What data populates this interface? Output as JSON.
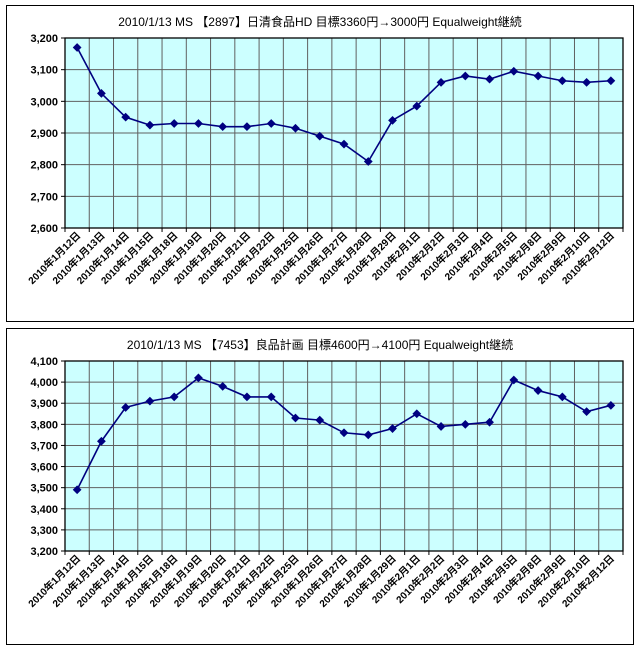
{
  "chart_data": [
    {
      "type": "line",
      "title": "2010/1/13 MS 【2897】日清食品HD 目標3360円→3000円 Equalweight継続",
      "categories": [
        "2010年1月12日",
        "2010年1月13日",
        "2010年1月14日",
        "2010年1月15日",
        "2010年1月18日",
        "2010年1月19日",
        "2010年1月20日",
        "2010年1月21日",
        "2010年1月22日",
        "2010年1月25日",
        "2010年1月26日",
        "2010年1月27日",
        "2010年1月28日",
        "2010年1月29日",
        "2010年2月1日",
        "2010年2月2日",
        "2010年2月3日",
        "2010年2月4日",
        "2010年2月5日",
        "2010年2月8日",
        "2010年2月9日",
        "2010年2月10日",
        "2010年2月12日"
      ],
      "values": [
        3170,
        3025,
        2950,
        2925,
        2930,
        2930,
        2920,
        2920,
        2930,
        2915,
        2890,
        2865,
        2810,
        2940,
        2985,
        3060,
        3080,
        3070,
        3095,
        3080,
        3065,
        3060,
        3065
      ],
      "xlabel": "",
      "ylabel": "",
      "ylim": [
        2600,
        3200
      ],
      "ytick_step": 100,
      "yticks": [
        "2,600",
        "2,700",
        "2,800",
        "2,900",
        "3,000",
        "3,100",
        "3,200"
      ],
      "grid": true,
      "legend": "none",
      "marker": "diamond",
      "colors": {
        "plot_bg": "#ccffff",
        "line": "#000080",
        "grid": "#606060",
        "axis": "#000000"
      }
    },
    {
      "type": "line",
      "title": "2010/1/13 MS 【7453】良品計画 目標4600円→4100円 Equalweight継続",
      "categories": [
        "2010年1月12日",
        "2010年1月13日",
        "2010年1月14日",
        "2010年1月15日",
        "2010年1月18日",
        "2010年1月19日",
        "2010年1月20日",
        "2010年1月21日",
        "2010年1月22日",
        "2010年1月25日",
        "2010年1月26日",
        "2010年1月27日",
        "2010年1月28日",
        "2010年1月29日",
        "2010年2月1日",
        "2010年2月2日",
        "2010年2月3日",
        "2010年2月4日",
        "2010年2月5日",
        "2010年2月8日",
        "2010年2月9日",
        "2010年2月10日",
        "2010年2月12日"
      ],
      "values": [
        3490,
        3720,
        3880,
        3910,
        3930,
        4020,
        3980,
        3930,
        3930,
        3830,
        3820,
        3760,
        3750,
        3780,
        3850,
        3790,
        3800,
        3810,
        4010,
        3960,
        3930,
        3860,
        3890
      ],
      "xlabel": "",
      "ylabel": "",
      "ylim": [
        3200,
        4100
      ],
      "ytick_step": 100,
      "yticks": [
        "3,200",
        "3,300",
        "3,400",
        "3,500",
        "3,600",
        "3,700",
        "3,800",
        "3,900",
        "4,000",
        "4,100"
      ],
      "grid": true,
      "legend": "none",
      "marker": "diamond",
      "colors": {
        "plot_bg": "#ccffff",
        "line": "#000080",
        "grid": "#606060",
        "axis": "#000000"
      }
    }
  ]
}
